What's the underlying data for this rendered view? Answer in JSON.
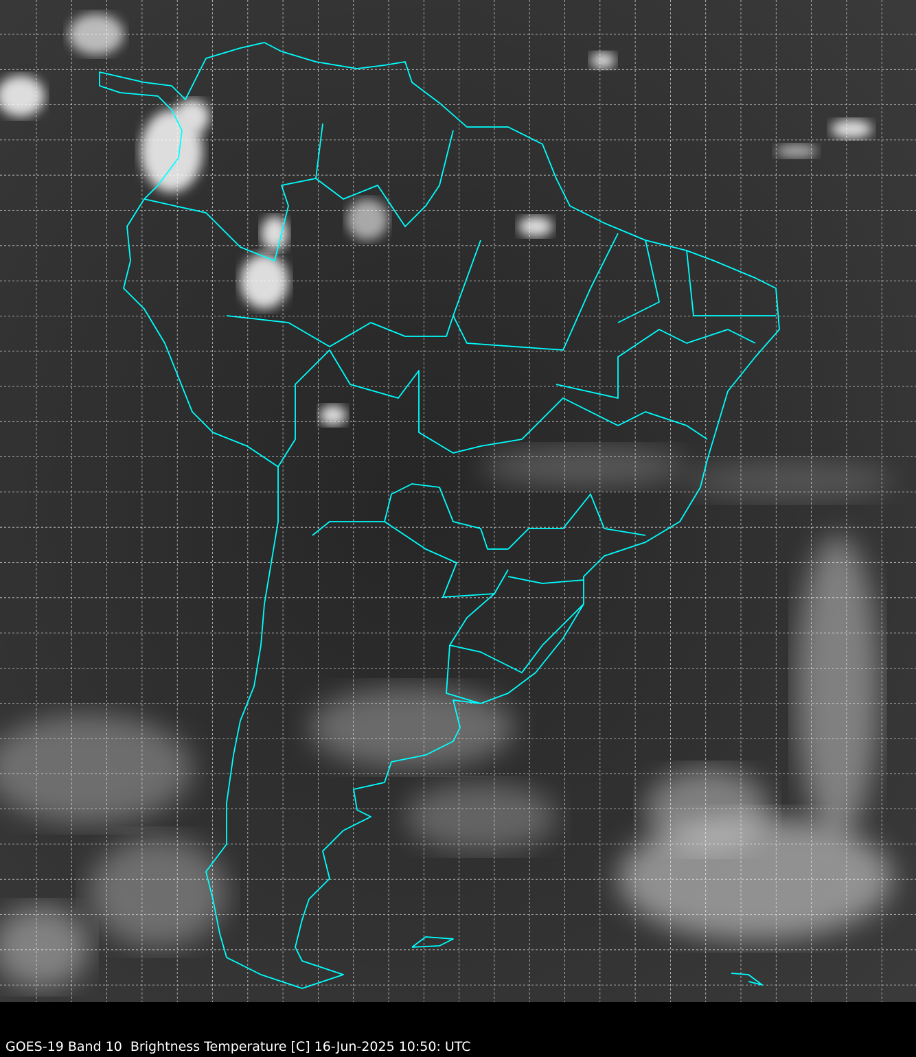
{
  "caption": "GOES-19 Band 10  Brightness Temperature [C] 16-Jun-2025 10:50: UTC",
  "colors": {
    "border_lines": "#00ffff",
    "grid_lines": "#ffffff",
    "background": "#000000"
  }
}
